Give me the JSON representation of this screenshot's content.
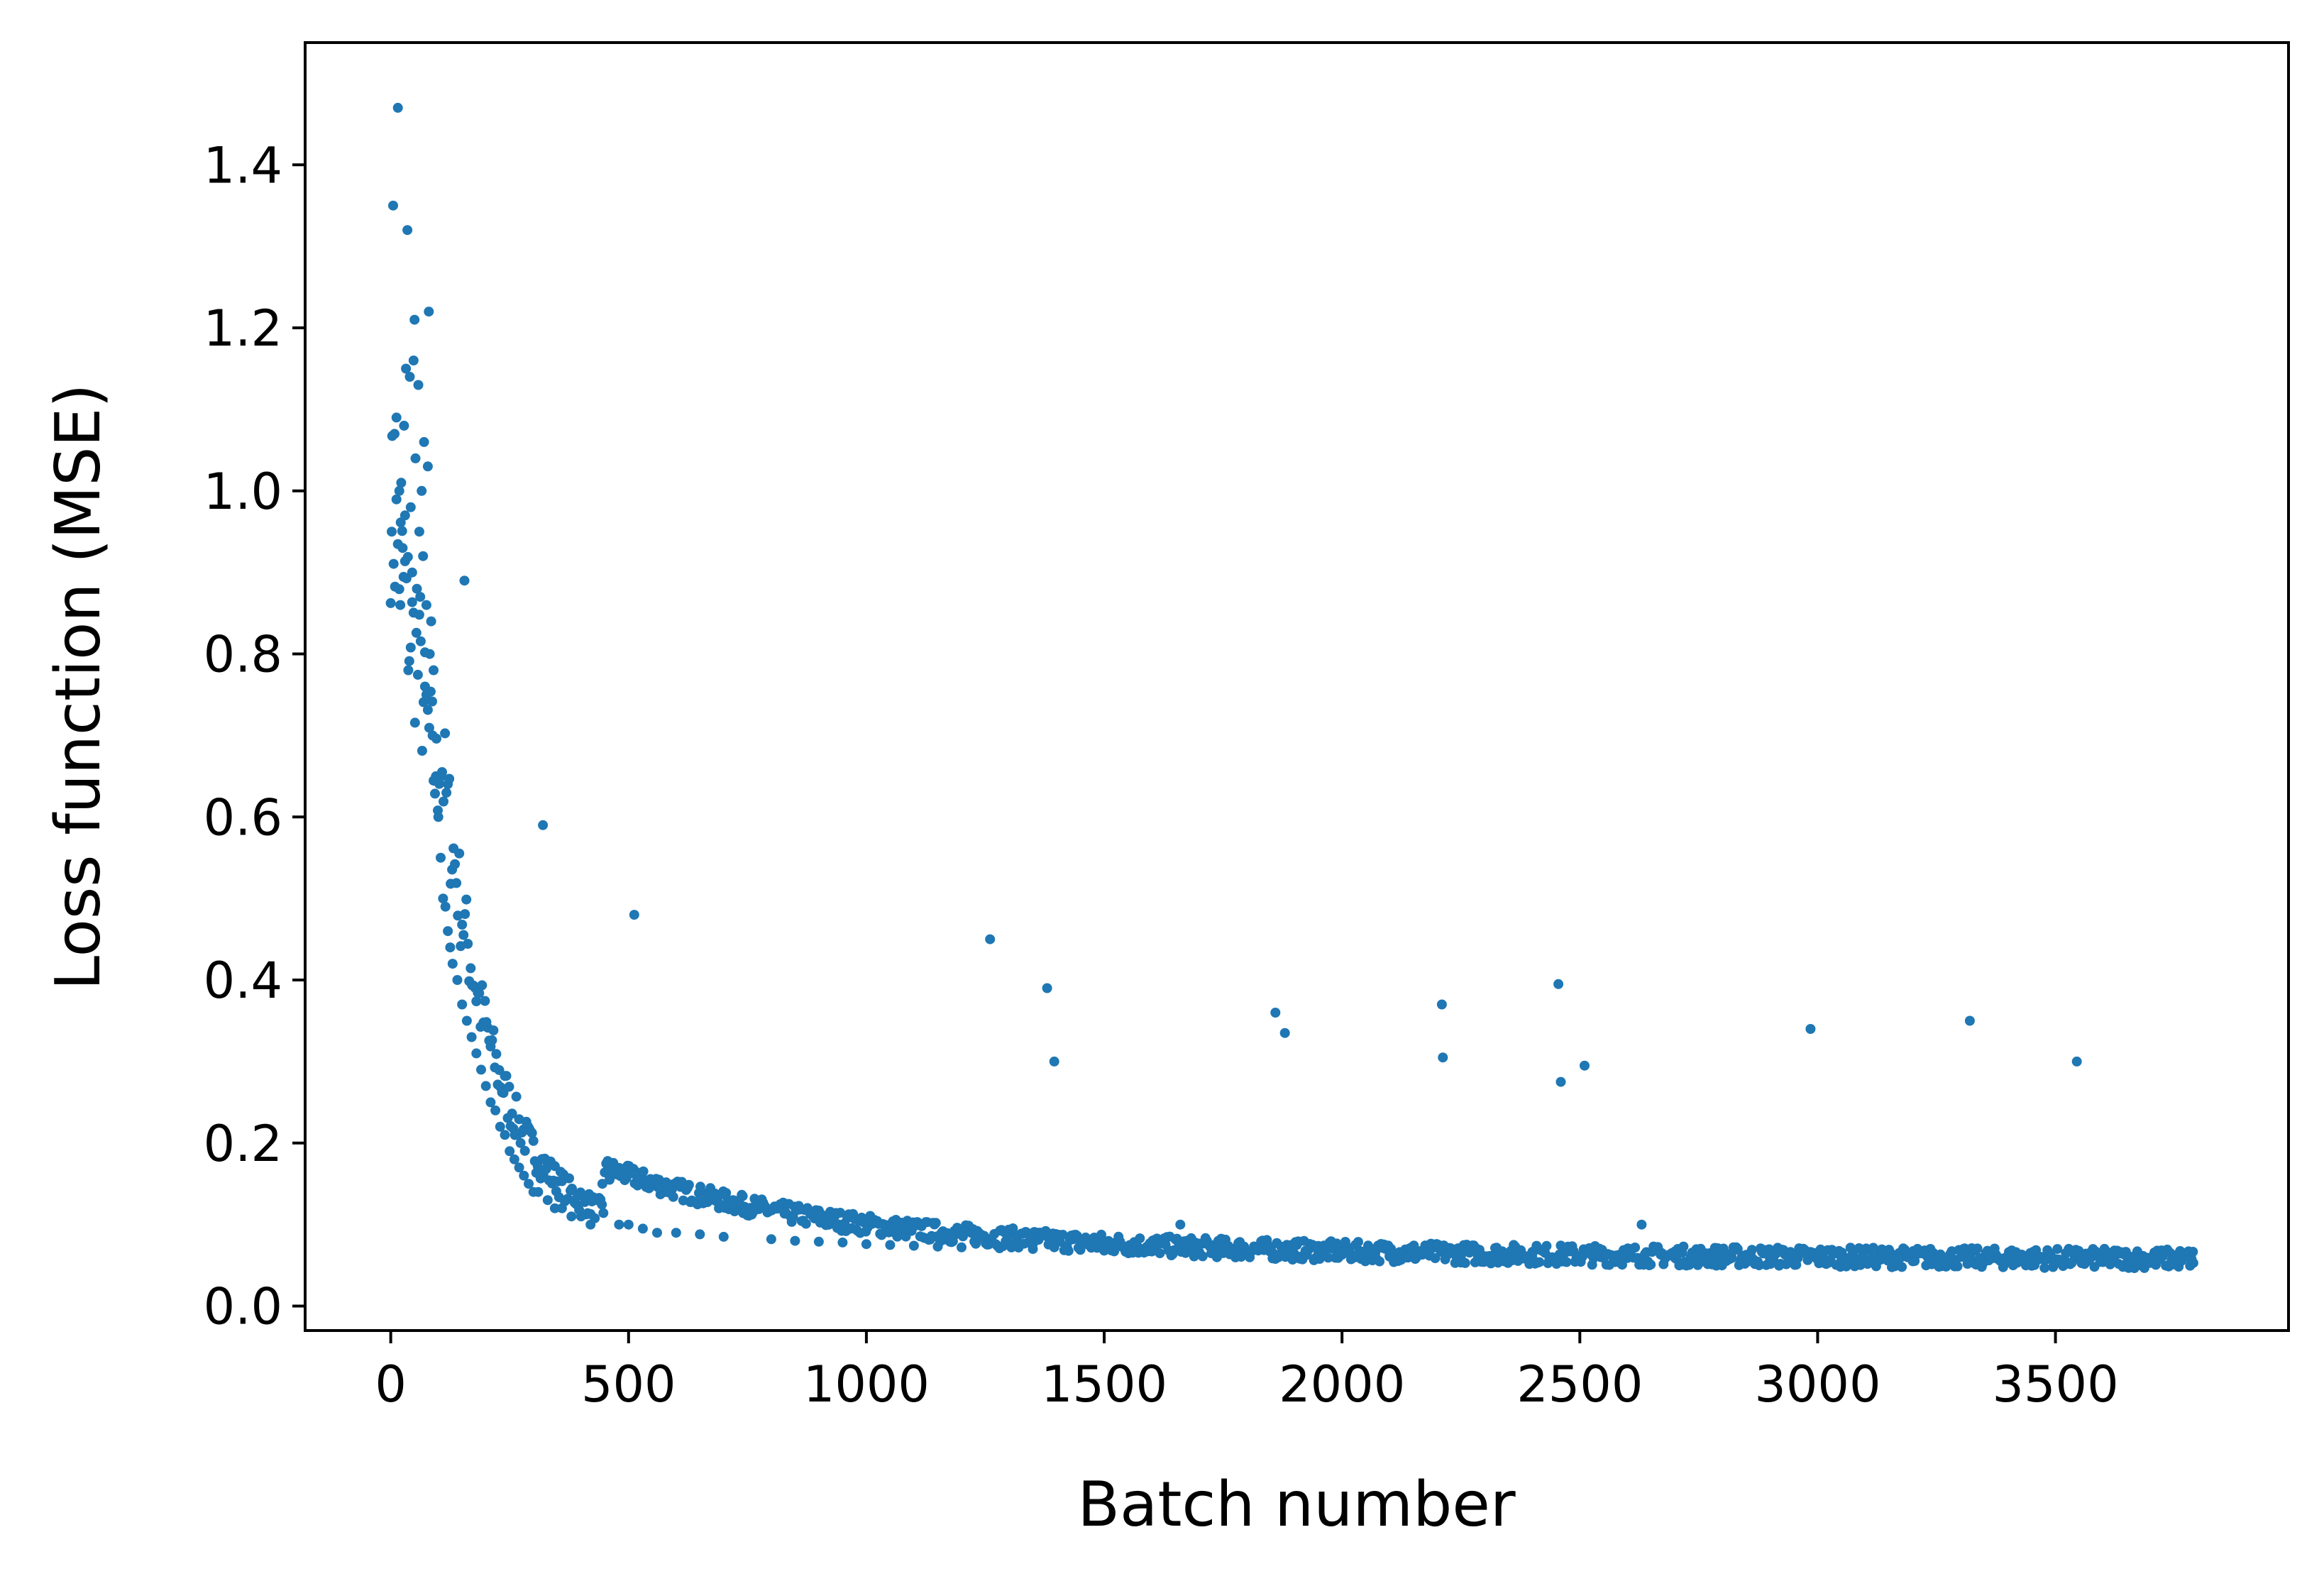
{
  "chart_data": {
    "type": "scatter",
    "xlabel": "Batch number",
    "ylabel": "Loss function (MSE)",
    "xlim": [
      -180,
      3990
    ],
    "ylim": [
      -0.03,
      1.55
    ],
    "x_ticks": [
      0,
      500,
      1000,
      1500,
      2000,
      2500,
      3000,
      3500
    ],
    "y_ticks": [
      0.0,
      0.2,
      0.4,
      0.6,
      0.8,
      1.0,
      1.2,
      1.4
    ],
    "y_tick_labels": [
      "0.0",
      "0.2",
      "0.4",
      "0.6",
      "0.8",
      "1.0",
      "1.2",
      "1.4"
    ],
    "grid": false,
    "marker_color": "#1f77b4",
    "series": [
      {
        "points": [
          [
            2,
            0.95
          ],
          [
            5,
            1.35
          ],
          [
            8,
            1.07
          ],
          [
            12,
            1.09
          ],
          [
            15,
            1.47
          ],
          [
            18,
            1.0
          ],
          [
            20,
            0.86
          ],
          [
            22,
            1.01
          ],
          [
            25,
            0.93
          ],
          [
            28,
            1.08
          ],
          [
            30,
            0.97
          ],
          [
            32,
            1.15
          ],
          [
            35,
            1.32
          ],
          [
            37,
            0.78
          ],
          [
            40,
            1.14
          ],
          [
            42,
            0.98
          ],
          [
            45,
            0.9
          ],
          [
            48,
            1.16
          ],
          [
            50,
            1.21
          ],
          [
            52,
            1.04
          ],
          [
            55,
            0.88
          ],
          [
            58,
            1.13
          ],
          [
            60,
            0.95
          ],
          [
            62,
            0.87
          ],
          [
            65,
            1.0
          ],
          [
            68,
            0.92
          ],
          [
            70,
            1.06
          ],
          [
            72,
            0.76
          ],
          [
            75,
            0.86
          ],
          [
            78,
            1.03
          ],
          [
            80,
            1.22
          ],
          [
            82,
            0.8
          ],
          [
            85,
            0.84
          ],
          [
            88,
            0.7
          ],
          [
            90,
            0.78
          ],
          [
            95,
            0.65
          ],
          [
            100,
            0.6
          ],
          [
            105,
            0.55
          ],
          [
            110,
            0.5
          ],
          [
            115,
            0.49
          ],
          [
            120,
            0.46
          ],
          [
            125,
            0.44
          ],
          [
            130,
            0.42
          ],
          [
            140,
            0.4
          ],
          [
            150,
            0.37
          ],
          [
            155,
            0.89
          ],
          [
            160,
            0.35
          ],
          [
            170,
            0.33
          ],
          [
            180,
            0.31
          ],
          [
            190,
            0.29
          ],
          [
            200,
            0.27
          ],
          [
            210,
            0.25
          ],
          [
            220,
            0.24
          ],
          [
            230,
            0.22
          ],
          [
            240,
            0.21
          ],
          [
            250,
            0.19
          ],
          [
            260,
            0.18
          ],
          [
            270,
            0.17
          ],
          [
            280,
            0.16
          ],
          [
            290,
            0.15
          ],
          [
            300,
            0.14
          ],
          [
            310,
            0.14
          ],
          [
            320,
            0.59
          ],
          [
            330,
            0.13
          ],
          [
            345,
            0.12
          ],
          [
            360,
            0.12
          ],
          [
            380,
            0.11
          ],
          [
            400,
            0.11
          ],
          [
            420,
            0.1
          ],
          [
            445,
            0.15
          ],
          [
            460,
            0.155
          ],
          [
            480,
            0.1
          ],
          [
            500,
            0.1
          ],
          [
            512,
            0.48
          ],
          [
            515,
            0.165
          ],
          [
            530,
            0.095
          ],
          [
            560,
            0.09
          ],
          [
            600,
            0.09
          ],
          [
            650,
            0.088
          ],
          [
            700,
            0.085
          ],
          [
            720,
            0.13
          ],
          [
            740,
            0.135
          ],
          [
            800,
            0.082
          ],
          [
            850,
            0.08
          ],
          [
            900,
            0.079
          ],
          [
            950,
            0.078
          ],
          [
            1000,
            0.076
          ],
          [
            1050,
            0.075
          ],
          [
            1100,
            0.074
          ],
          [
            1150,
            0.073
          ],
          [
            1200,
            0.072
          ],
          [
            1260,
            0.45
          ],
          [
            1280,
            0.071
          ],
          [
            1350,
            0.07
          ],
          [
            1380,
            0.39
          ],
          [
            1395,
            0.3
          ],
          [
            1450,
            0.069
          ],
          [
            1500,
            0.068
          ],
          [
            1550,
            0.068
          ],
          [
            1600,
            0.067
          ],
          [
            1660,
            0.1
          ],
          [
            1700,
            0.066
          ],
          [
            1750,
            0.065
          ],
          [
            1800,
            0.065
          ],
          [
            1860,
            0.36
          ],
          [
            1880,
            0.335
          ],
          [
            1900,
            0.064
          ],
          [
            1950,
            0.064
          ],
          [
            2000,
            0.063
          ],
          [
            2050,
            0.063
          ],
          [
            2100,
            0.062
          ],
          [
            2150,
            0.062
          ],
          [
            2210,
            0.37
          ],
          [
            2212,
            0.305
          ],
          [
            2250,
            0.061
          ],
          [
            2300,
            0.061
          ],
          [
            2350,
            0.061
          ],
          [
            2400,
            0.06
          ],
          [
            2455,
            0.395
          ],
          [
            2460,
            0.275
          ],
          [
            2510,
            0.295
          ],
          [
            2550,
            0.06
          ],
          [
            2600,
            0.059
          ],
          [
            2630,
            0.1
          ],
          [
            2700,
            0.059
          ],
          [
            2750,
            0.058
          ],
          [
            2800,
            0.058
          ],
          [
            2850,
            0.058
          ],
          [
            2900,
            0.057
          ],
          [
            2950,
            0.057
          ],
          [
            2985,
            0.34
          ],
          [
            3000,
            0.057
          ],
          [
            3050,
            0.056
          ],
          [
            3100,
            0.056
          ],
          [
            3150,
            0.056
          ],
          [
            3200,
            0.055
          ],
          [
            3250,
            0.055
          ],
          [
            3320,
            0.35
          ],
          [
            3350,
            0.055
          ],
          [
            3400,
            0.054
          ],
          [
            3450,
            0.054
          ],
          [
            3500,
            0.054
          ],
          [
            3545,
            0.3
          ],
          [
            3600,
            0.054
          ],
          [
            3650,
            0.053
          ],
          [
            3700,
            0.053
          ],
          [
            3750,
            0.053
          ],
          [
            3790,
            0.053
          ]
        ]
      }
    ]
  }
}
